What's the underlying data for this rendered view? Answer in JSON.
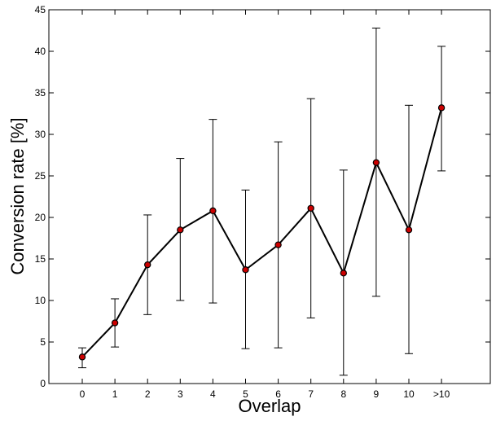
{
  "chart_data": {
    "type": "line",
    "title": "",
    "xlabel": "Overlap",
    "ylabel": "Conversion rate [%]",
    "categories": [
      "0",
      "1",
      "2",
      "3",
      "4",
      "5",
      "6",
      "7",
      "8",
      "9",
      "10",
      ">10"
    ],
    "series": [
      {
        "values": [
          3.2,
          7.3,
          14.3,
          18.5,
          20.8,
          13.7,
          16.7,
          21.1,
          13.3,
          26.6,
          18.5,
          33.2
        ],
        "error_lower": [
          1.9,
          4.4,
          8.3,
          10.0,
          9.7,
          4.2,
          4.3,
          7.9,
          1.0,
          10.5,
          3.6,
          25.6
        ],
        "error_upper": [
          4.3,
          10.2,
          20.3,
          27.1,
          31.8,
          23.3,
          29.1,
          34.3,
          25.7,
          42.8,
          33.5,
          40.6
        ]
      }
    ],
    "ylim": [
      0,
      45
    ],
    "yticks": [
      0,
      5,
      10,
      15,
      20,
      25,
      30,
      35,
      40,
      45
    ],
    "grid": false,
    "legend": "none",
    "colors": {
      "line": "#000000",
      "marker_fill": "#cc0000",
      "marker_edge": "#000000",
      "errorbar": "#000000"
    }
  }
}
